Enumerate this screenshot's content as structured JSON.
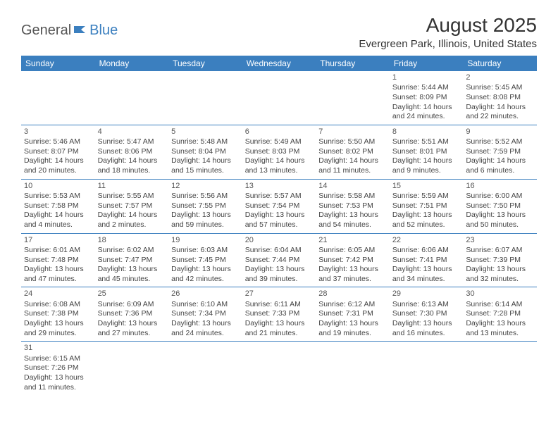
{
  "logo": {
    "text1": "General",
    "text2": "Blue"
  },
  "title": "August 2025",
  "location": "Evergreen Park, Illinois, United States",
  "colors": {
    "header_bg": "#3b7fbf",
    "header_text": "#ffffff",
    "border": "#3b7fbf",
    "text": "#444444",
    "title_text": "#333333"
  },
  "dayHeaders": [
    "Sunday",
    "Monday",
    "Tuesday",
    "Wednesday",
    "Thursday",
    "Friday",
    "Saturday"
  ],
  "startOffset": 5,
  "days": [
    {
      "n": 1,
      "sunrise": "5:44 AM",
      "sunset": "8:09 PM",
      "daylight": "14 hours and 24 minutes."
    },
    {
      "n": 2,
      "sunrise": "5:45 AM",
      "sunset": "8:08 PM",
      "daylight": "14 hours and 22 minutes."
    },
    {
      "n": 3,
      "sunrise": "5:46 AM",
      "sunset": "8:07 PM",
      "daylight": "14 hours and 20 minutes."
    },
    {
      "n": 4,
      "sunrise": "5:47 AM",
      "sunset": "8:06 PM",
      "daylight": "14 hours and 18 minutes."
    },
    {
      "n": 5,
      "sunrise": "5:48 AM",
      "sunset": "8:04 PM",
      "daylight": "14 hours and 15 minutes."
    },
    {
      "n": 6,
      "sunrise": "5:49 AM",
      "sunset": "8:03 PM",
      "daylight": "14 hours and 13 minutes."
    },
    {
      "n": 7,
      "sunrise": "5:50 AM",
      "sunset": "8:02 PM",
      "daylight": "14 hours and 11 minutes."
    },
    {
      "n": 8,
      "sunrise": "5:51 AM",
      "sunset": "8:01 PM",
      "daylight": "14 hours and 9 minutes."
    },
    {
      "n": 9,
      "sunrise": "5:52 AM",
      "sunset": "7:59 PM",
      "daylight": "14 hours and 6 minutes."
    },
    {
      "n": 10,
      "sunrise": "5:53 AM",
      "sunset": "7:58 PM",
      "daylight": "14 hours and 4 minutes."
    },
    {
      "n": 11,
      "sunrise": "5:55 AM",
      "sunset": "7:57 PM",
      "daylight": "14 hours and 2 minutes."
    },
    {
      "n": 12,
      "sunrise": "5:56 AM",
      "sunset": "7:55 PM",
      "daylight": "13 hours and 59 minutes."
    },
    {
      "n": 13,
      "sunrise": "5:57 AM",
      "sunset": "7:54 PM",
      "daylight": "13 hours and 57 minutes."
    },
    {
      "n": 14,
      "sunrise": "5:58 AM",
      "sunset": "7:53 PM",
      "daylight": "13 hours and 54 minutes."
    },
    {
      "n": 15,
      "sunrise": "5:59 AM",
      "sunset": "7:51 PM",
      "daylight": "13 hours and 52 minutes."
    },
    {
      "n": 16,
      "sunrise": "6:00 AM",
      "sunset": "7:50 PM",
      "daylight": "13 hours and 50 minutes."
    },
    {
      "n": 17,
      "sunrise": "6:01 AM",
      "sunset": "7:48 PM",
      "daylight": "13 hours and 47 minutes."
    },
    {
      "n": 18,
      "sunrise": "6:02 AM",
      "sunset": "7:47 PM",
      "daylight": "13 hours and 45 minutes."
    },
    {
      "n": 19,
      "sunrise": "6:03 AM",
      "sunset": "7:45 PM",
      "daylight": "13 hours and 42 minutes."
    },
    {
      "n": 20,
      "sunrise": "6:04 AM",
      "sunset": "7:44 PM",
      "daylight": "13 hours and 39 minutes."
    },
    {
      "n": 21,
      "sunrise": "6:05 AM",
      "sunset": "7:42 PM",
      "daylight": "13 hours and 37 minutes."
    },
    {
      "n": 22,
      "sunrise": "6:06 AM",
      "sunset": "7:41 PM",
      "daylight": "13 hours and 34 minutes."
    },
    {
      "n": 23,
      "sunrise": "6:07 AM",
      "sunset": "7:39 PM",
      "daylight": "13 hours and 32 minutes."
    },
    {
      "n": 24,
      "sunrise": "6:08 AM",
      "sunset": "7:38 PM",
      "daylight": "13 hours and 29 minutes."
    },
    {
      "n": 25,
      "sunrise": "6:09 AM",
      "sunset": "7:36 PM",
      "daylight": "13 hours and 27 minutes."
    },
    {
      "n": 26,
      "sunrise": "6:10 AM",
      "sunset": "7:34 PM",
      "daylight": "13 hours and 24 minutes."
    },
    {
      "n": 27,
      "sunrise": "6:11 AM",
      "sunset": "7:33 PM",
      "daylight": "13 hours and 21 minutes."
    },
    {
      "n": 28,
      "sunrise": "6:12 AM",
      "sunset": "7:31 PM",
      "daylight": "13 hours and 19 minutes."
    },
    {
      "n": 29,
      "sunrise": "6:13 AM",
      "sunset": "7:30 PM",
      "daylight": "13 hours and 16 minutes."
    },
    {
      "n": 30,
      "sunrise": "6:14 AM",
      "sunset": "7:28 PM",
      "daylight": "13 hours and 13 minutes."
    },
    {
      "n": 31,
      "sunrise": "6:15 AM",
      "sunset": "7:26 PM",
      "daylight": "13 hours and 11 minutes."
    }
  ],
  "labels": {
    "sunrise": "Sunrise:",
    "sunset": "Sunset:",
    "daylight": "Daylight:"
  }
}
